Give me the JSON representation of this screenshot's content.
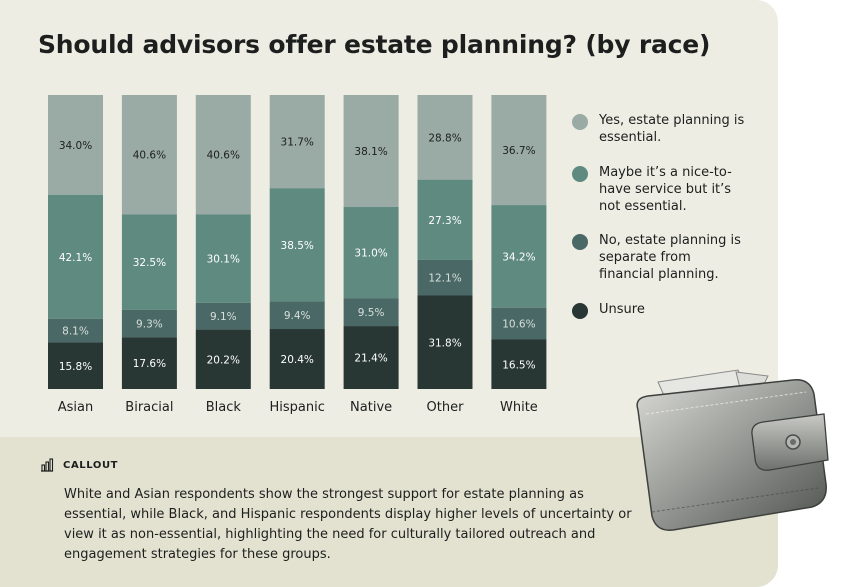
{
  "title": "Should advisors offer estate planning? (by race)",
  "legend": [
    {
      "label": "Yes, estate planning is essential.",
      "color": "#9aaaa4"
    },
    {
      "label": "Maybe it’s a nice-to-have service but it’s not essential.",
      "color": "#5f8a80"
    },
    {
      "label": "No, estate planning is separate from financial planning.",
      "color": "#4a6966"
    },
    {
      "label": "Unsure",
      "color": "#283634"
    }
  ],
  "callout": {
    "label": "CALLOUT",
    "text": "White and Asian respondents show the strongest support for estate planning as essential, while Black, and Hispanic respondents display higher levels of uncertainty or view it as non-essential, highlighting the need for culturally tailored outreach and engagement strategies for these groups."
  },
  "chart_data": {
    "type": "bar",
    "stacked": true,
    "title": "Should advisors offer estate planning? (by race)",
    "categories": [
      "Asian",
      "Biracial",
      "Black",
      "Hispanic",
      "Native",
      "Other",
      "White"
    ],
    "series": [
      {
        "name": "Yes, estate planning is essential.",
        "color": "#9aaaa4",
        "values": [
          34.0,
          40.6,
          40.6,
          31.7,
          38.1,
          28.8,
          36.7
        ]
      },
      {
        "name": "Maybe it’s a nice-to-have service but it’s not essential.",
        "color": "#5f8a80",
        "values": [
          42.1,
          32.5,
          30.1,
          38.5,
          31.0,
          27.3,
          34.2
        ]
      },
      {
        "name": "No, estate planning is separate from financial planning.",
        "color": "#4a6966",
        "values": [
          8.1,
          9.3,
          9.1,
          9.4,
          9.5,
          12.1,
          10.6
        ]
      },
      {
        "name": "Unsure",
        "color": "#283634",
        "values": [
          15.8,
          17.6,
          20.2,
          20.4,
          21.4,
          31.8,
          16.5
        ]
      }
    ],
    "value_suffix": "%",
    "legend_position": "right"
  }
}
